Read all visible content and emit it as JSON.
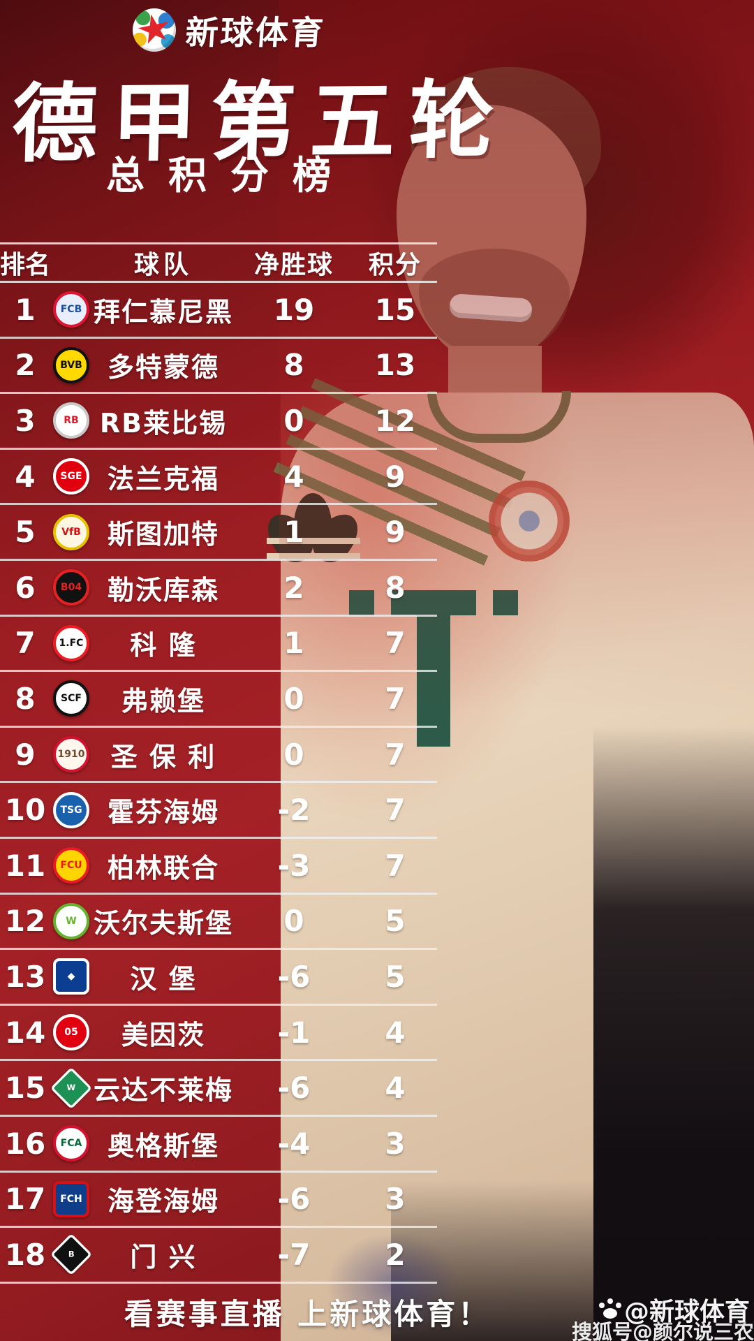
{
  "brand": {
    "name": "新球体育",
    "logo_icon": "soccer-ball-red-star"
  },
  "title": "德甲第五轮",
  "subtitle": "总积分榜",
  "table": {
    "headers": {
      "rank": "排名",
      "team": "球队",
      "gd": "净胜球",
      "points": "积分"
    },
    "teams": [
      {
        "rank": 1,
        "name": "拜仁慕尼黑",
        "gd": 19,
        "points": 15,
        "badge": {
          "shape": "circle",
          "ring": "#dd1533",
          "center": "#e8effa",
          "label": "FCB",
          "lc": "#1e4f9c"
        }
      },
      {
        "rank": 2,
        "name": "多特蒙德",
        "gd": 8,
        "points": 13,
        "badge": {
          "shape": "circle",
          "ring": "#111111",
          "center": "#ffd900",
          "label": "BVB",
          "lc": "#111111"
        }
      },
      {
        "rank": 3,
        "name": "RB莱比锡",
        "gd": 0,
        "points": 12,
        "badge": {
          "shape": "circle",
          "ring": "#c9c9c9",
          "center": "#ffffff",
          "label": "RB",
          "lc": "#e0162b"
        }
      },
      {
        "rank": 4,
        "name": "法兰克福",
        "gd": 4,
        "points": 9,
        "badge": {
          "shape": "circle",
          "ring": "#ffffff",
          "center": "#e1000f",
          "label": "SGE",
          "lc": "#ffffff"
        }
      },
      {
        "rank": 5,
        "name": "斯图加特",
        "gd": 1,
        "points": 9,
        "badge": {
          "shape": "circle",
          "ring": "#e6c300",
          "center": "#fdf6e3",
          "label": "VfB",
          "lc": "#d31218"
        }
      },
      {
        "rank": 6,
        "name": "勒沃库森",
        "gd": 2,
        "points": 8,
        "badge": {
          "shape": "circle",
          "ring": "#e32221",
          "center": "#111111",
          "label": "B04",
          "lc": "#e32221"
        }
      },
      {
        "rank": 7,
        "name": "科 隆",
        "gd": 1,
        "points": 7,
        "badge": {
          "shape": "circle",
          "ring": "#ed1c24",
          "center": "#ffffff",
          "label": "1.FC",
          "lc": "#111111"
        }
      },
      {
        "rank": 8,
        "name": "弗赖堡",
        "gd": 0,
        "points": 7,
        "badge": {
          "shape": "circle",
          "ring": "#111111",
          "center": "#ffffff",
          "label": "SCF",
          "lc": "#111111"
        }
      },
      {
        "rank": 9,
        "name": "圣 保 利",
        "gd": 0,
        "points": 7,
        "badge": {
          "shape": "circle",
          "ring": "#d2122e",
          "center": "#fff7ee",
          "label": "1910",
          "lc": "#6e4a2f"
        }
      },
      {
        "rank": 10,
        "name": "霍芬海姆",
        "gd": -2,
        "points": 7,
        "badge": {
          "shape": "circle",
          "ring": "#ffffff",
          "center": "#1961ac",
          "label": "TSG",
          "lc": "#ffffff"
        }
      },
      {
        "rank": 11,
        "name": "柏林联合",
        "gd": -3,
        "points": 7,
        "badge": {
          "shape": "circle",
          "ring": "#eb1923",
          "center": "#ffd500",
          "label": "FCU",
          "lc": "#eb1923"
        }
      },
      {
        "rank": 12,
        "name": "沃尔夫斯堡",
        "gd": 0,
        "points": 5,
        "badge": {
          "shape": "circle",
          "ring": "#65b32e",
          "center": "#ffffff",
          "label": "W",
          "lc": "#65b32e"
        }
      },
      {
        "rank": 13,
        "name": "汉 堡",
        "gd": -6,
        "points": 5,
        "badge": {
          "shape": "square",
          "ring": "#ffffff",
          "center": "#0b3d91",
          "label": "◆",
          "lc": "#ffffff"
        }
      },
      {
        "rank": 14,
        "name": "美因茨",
        "gd": -1,
        "points": 4,
        "badge": {
          "shape": "circle",
          "ring": "#ffffff",
          "center": "#e1000f",
          "label": "05",
          "lc": "#ffffff"
        }
      },
      {
        "rank": 15,
        "name": "云达不莱梅",
        "gd": -6,
        "points": 4,
        "badge": {
          "shape": "diamond",
          "ring": "#ffffff",
          "center": "#1d9053",
          "label": "W",
          "lc": "#ffffff"
        }
      },
      {
        "rank": 16,
        "name": "奥格斯堡",
        "gd": -4,
        "points": 3,
        "badge": {
          "shape": "circle",
          "ring": "#d2122e",
          "center": "#ffffff",
          "label": "FCA",
          "lc": "#046a38"
        }
      },
      {
        "rank": 17,
        "name": "海登海姆",
        "gd": -6,
        "points": 3,
        "badge": {
          "shape": "square",
          "ring": "#d31218",
          "center": "#0f3d8a",
          "label": "FCH",
          "lc": "#ffffff"
        }
      },
      {
        "rank": 18,
        "name": "门 兴",
        "gd": -7,
        "points": 2,
        "badge": {
          "shape": "diamond",
          "ring": "#ffffff",
          "center": "#101010",
          "label": "B",
          "lc": "#ffffff"
        }
      }
    ]
  },
  "footer": {
    "slogan": "看赛事直播 上新球体育！"
  },
  "watermarks": {
    "brand": "@新球体育",
    "sohu": "搜狐号@颜尔说三农"
  },
  "colors": {
    "background_red": "#a32025",
    "dark_red": "#4e0c10",
    "separator": "#f0f0f0",
    "text": "#ffffff",
    "jersey_cream": "#e6d3ba",
    "telekom_green": "#2e5a49",
    "star_red": "#e0252b"
  }
}
